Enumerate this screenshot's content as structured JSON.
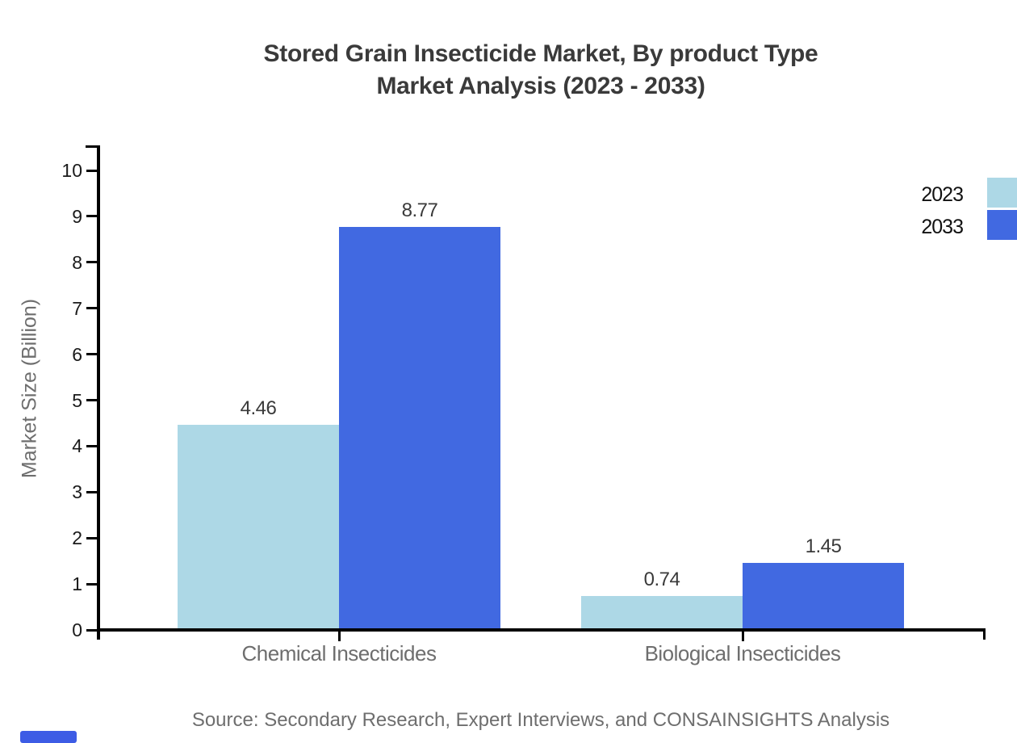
{
  "title": {
    "line1": "Stored Grain Insecticide Market, By product Type",
    "line2": "Market Analysis (2023 - 2033)"
  },
  "source_note": "Source: Secondary Research, Expert Interviews, and CONSAINSIGHTS Analysis",
  "legend": {
    "items": [
      {
        "label": "2023",
        "color": "#ADD8E6"
      },
      {
        "label": "2033",
        "color": "#4169E1"
      }
    ]
  },
  "colors": {
    "series_2023": "#ADD8E6",
    "series_2033": "#4169E1",
    "title_text": "#3A3A3A",
    "tick_text": "#1A1A1A",
    "muted_text": "#6E6E6E",
    "axis_line": "#000000",
    "brand_mark": "#3D5CE5"
  },
  "chart_data": {
    "type": "bar",
    "title": "Stored Grain Insecticide Market, By product Type Market Analysis (2023 - 2033)",
    "categories": [
      "Chemical Insecticides",
      "Biological Insecticides"
    ],
    "series": [
      {
        "name": "2023",
        "color": "#ADD8E6",
        "values": [
          4.46,
          0.74
        ]
      },
      {
        "name": "2033",
        "color": "#4169E1",
        "values": [
          8.77,
          1.45
        ]
      }
    ],
    "value_labels": [
      [
        "4.46",
        "0.74"
      ],
      [
        "8.77",
        "1.45"
      ]
    ],
    "xlabel": "",
    "ylabel": "Market Size (Billion)",
    "ylim": [
      0,
      10
    ],
    "ytick_step": 1,
    "grid": false,
    "legend_position": "upper-right"
  }
}
